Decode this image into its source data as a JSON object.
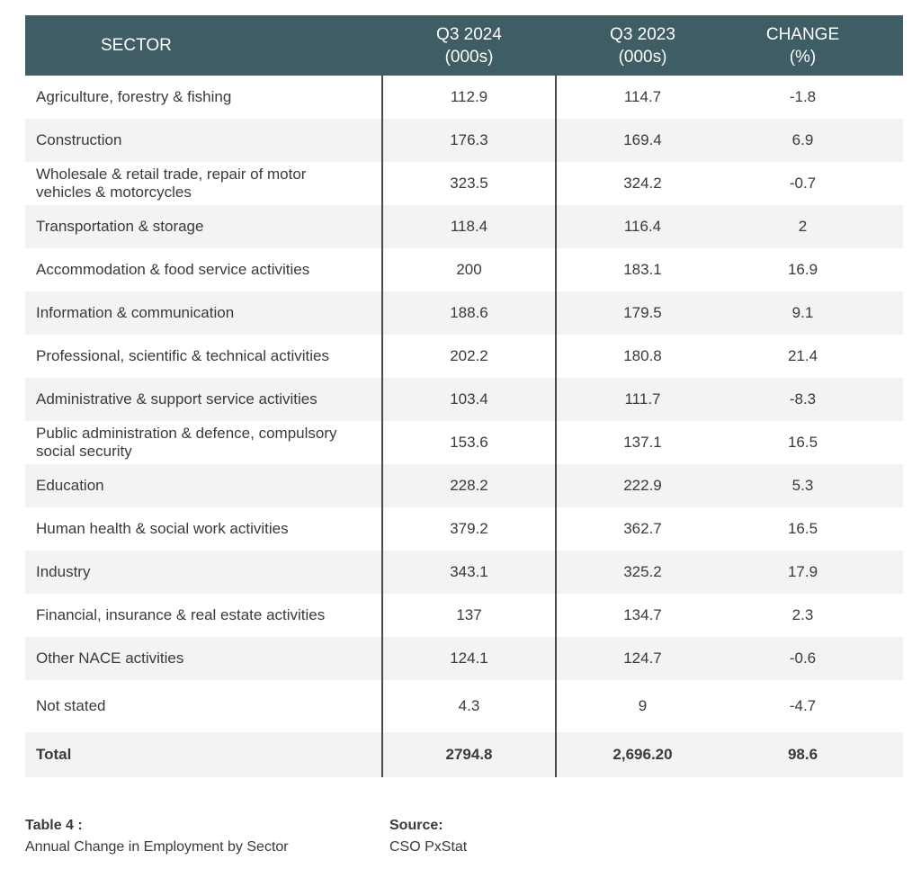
{
  "chart_data": {
    "type": "table",
    "columns": [
      "SECTOR",
      "Q3 2024 (000s)",
      "Q3 2023 (000s)",
      "CHANGE (%)"
    ],
    "header": {
      "sector": "SECTOR",
      "q3_2024": [
        "Q3 2024",
        "(000s)"
      ],
      "q3_2023": [
        "Q3 2023",
        "(000s)"
      ],
      "change": [
        "CHANGE",
        "(%)"
      ]
    },
    "rows": [
      {
        "sector": "Agriculture, forestry & fishing",
        "q3_2024": "112.9",
        "q3_2023": "114.7",
        "change": "-1.8"
      },
      {
        "sector": "Construction",
        "q3_2024": "176.3",
        "q3_2023": "169.4",
        "change": "6.9"
      },
      {
        "sector": "Wholesale & retail trade, repair of motor vehicles & motorcycles",
        "q3_2024": "323.5",
        "q3_2023": "324.2",
        "change": "-0.7"
      },
      {
        "sector": "Transportation & storage",
        "q3_2024": "118.4",
        "q3_2023": "116.4",
        "change": "2"
      },
      {
        "sector": "Accommodation & food service activities",
        "q3_2024": "200",
        "q3_2023": "183.1",
        "change": "16.9"
      },
      {
        "sector": "Information & communication",
        "q3_2024": "188.6",
        "q3_2023": "179.5",
        "change": "9.1"
      },
      {
        "sector": "Professional, scientific & technical activities",
        "q3_2024": "202.2",
        "q3_2023": "180.8",
        "change": "21.4"
      },
      {
        "sector": "Administrative & support service activities",
        "q3_2024": "103.4",
        "q3_2023": "111.7",
        "change": "-8.3"
      },
      {
        "sector": "Public administration & defence, compulsory social security",
        "q3_2024": "153.6",
        "q3_2023": "137.1",
        "change": "16.5"
      },
      {
        "sector": "Education",
        "q3_2024": "228.2",
        "q3_2023": "222.9",
        "change": "5.3"
      },
      {
        "sector": "Human health & social work activities",
        "q3_2024": "379.2",
        "q3_2023": "362.7",
        "change": "16.5"
      },
      {
        "sector": "Industry",
        "q3_2024": "343.1",
        "q3_2023": "325.2",
        "change": "17.9"
      },
      {
        "sector": "Financial, insurance & real estate activities",
        "q3_2024": "137",
        "q3_2023": "134.7",
        "change": "2.3"
      },
      {
        "sector": "Other NACE activities",
        "q3_2024": "124.1",
        "q3_2023": "124.7",
        "change": "-0.6"
      },
      {
        "sector": "Not stated",
        "q3_2024": "4.3",
        "q3_2023": "9",
        "change": "-4.7"
      }
    ],
    "total": {
      "sector": "Total",
      "q3_2024": "2794.8",
      "q3_2023": "2,696.20",
      "change": "98.6"
    }
  },
  "caption": {
    "label": "Table 4 :",
    "text": "Annual Change in Employment by Sector"
  },
  "source": {
    "label": "Source:",
    "text": "CSO PxStat"
  },
  "colors": {
    "header_bg": "#3e5d64",
    "header_text": "#ffffff",
    "alt_row_bg": "#f2f3f2",
    "divider": "#4a4a4a"
  }
}
